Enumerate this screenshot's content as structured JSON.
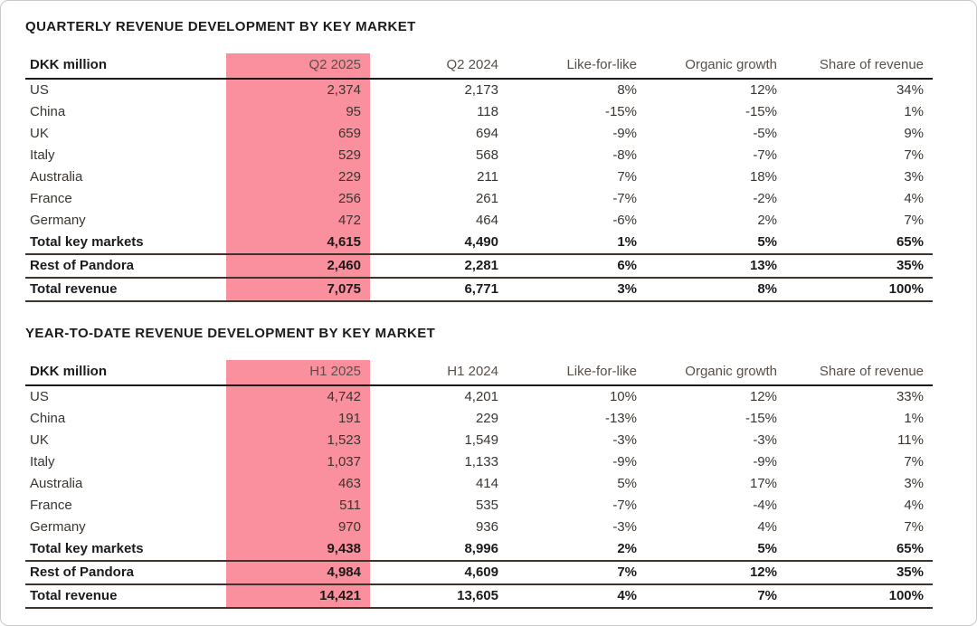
{
  "report": {
    "accent_pink": "#FA8F9D",
    "text_color": "#3A3530",
    "header_text_color": "#57504B",
    "rule_color": "#3E342C",
    "sections": [
      {
        "title": "QUARTERLY REVENUE DEVELOPMENT BY KEY MARKET",
        "table": {
          "unit_header": "DKK million",
          "columns": [
            "Q2 2025",
            "Q2 2024",
            "Like-for-like",
            "Organic growth",
            "Share of revenue"
          ],
          "highlighted_column": "Q2 2025",
          "rows": [
            {
              "label": "US",
              "values": [
                "2,374",
                "2,173",
                "8%",
                "12%",
                "34%"
              ],
              "emphasis": false,
              "rule_below": false
            },
            {
              "label": "China",
              "values": [
                "95",
                "118",
                "-15%",
                "-15%",
                "1%"
              ],
              "emphasis": false,
              "rule_below": false
            },
            {
              "label": "UK",
              "values": [
                "659",
                "694",
                "-9%",
                "-5%",
                "9%"
              ],
              "emphasis": false,
              "rule_below": false
            },
            {
              "label": "Italy",
              "values": [
                "529",
                "568",
                "-8%",
                "-7%",
                "7%"
              ],
              "emphasis": false,
              "rule_below": false
            },
            {
              "label": "Australia",
              "values": [
                "229",
                "211",
                "7%",
                "18%",
                "3%"
              ],
              "emphasis": false,
              "rule_below": false
            },
            {
              "label": "France",
              "values": [
                "256",
                "261",
                "-7%",
                "-2%",
                "4%"
              ],
              "emphasis": false,
              "rule_below": false
            },
            {
              "label": "Germany",
              "values": [
                "472",
                "464",
                "-6%",
                "2%",
                "7%"
              ],
              "emphasis": false,
              "rule_below": false
            },
            {
              "label": "Total key markets",
              "values": [
                "4,615",
                "4,490",
                "1%",
                "5%",
                "65%"
              ],
              "emphasis": true,
              "rule_below": true
            },
            {
              "label": "Rest of Pandora",
              "values": [
                "2,460",
                "2,281",
                "6%",
                "13%",
                "35%"
              ],
              "emphasis": true,
              "rule_below": true
            },
            {
              "label": "Total revenue",
              "values": [
                "7,075",
                "6,771",
                "3%",
                "8%",
                "100%"
              ],
              "emphasis": true,
              "rule_below": true
            }
          ]
        }
      },
      {
        "title": "YEAR-TO-DATE REVENUE DEVELOPMENT BY KEY MARKET",
        "table": {
          "unit_header": "DKK million",
          "columns": [
            "H1 2025",
            "H1 2024",
            "Like-for-like",
            "Organic growth",
            "Share of revenue"
          ],
          "highlighted_column": "H1 2025",
          "rows": [
            {
              "label": "US",
              "values": [
                "4,742",
                "4,201",
                "10%",
                "12%",
                "33%"
              ],
              "emphasis": false,
              "rule_below": false
            },
            {
              "label": "China",
              "values": [
                "191",
                "229",
                "-13%",
                "-15%",
                "1%"
              ],
              "emphasis": false,
              "rule_below": false
            },
            {
              "label": "UK",
              "values": [
                "1,523",
                "1,549",
                "-3%",
                "-3%",
                "11%"
              ],
              "emphasis": false,
              "rule_below": false
            },
            {
              "label": "Italy",
              "values": [
                "1,037",
                "1,133",
                "-9%",
                "-9%",
                "7%"
              ],
              "emphasis": false,
              "rule_below": false
            },
            {
              "label": "Australia",
              "values": [
                "463",
                "414",
                "5%",
                "17%",
                "3%"
              ],
              "emphasis": false,
              "rule_below": false
            },
            {
              "label": "France",
              "values": [
                "511",
                "535",
                "-7%",
                "-4%",
                "4%"
              ],
              "emphasis": false,
              "rule_below": false
            },
            {
              "label": "Germany",
              "values": [
                "970",
                "936",
                "-3%",
                "4%",
                "7%"
              ],
              "emphasis": false,
              "rule_below": false
            },
            {
              "label": "Total key markets",
              "values": [
                "9,438",
                "8,996",
                "2%",
                "5%",
                "65%"
              ],
              "emphasis": true,
              "rule_below": true
            },
            {
              "label": "Rest of Pandora",
              "values": [
                "4,984",
                "4,609",
                "7%",
                "12%",
                "35%"
              ],
              "emphasis": true,
              "rule_below": true
            },
            {
              "label": "Total revenue",
              "values": [
                "14,421",
                "13,605",
                "4%",
                "7%",
                "100%"
              ],
              "emphasis": true,
              "rule_below": true
            }
          ]
        }
      }
    ]
  }
}
